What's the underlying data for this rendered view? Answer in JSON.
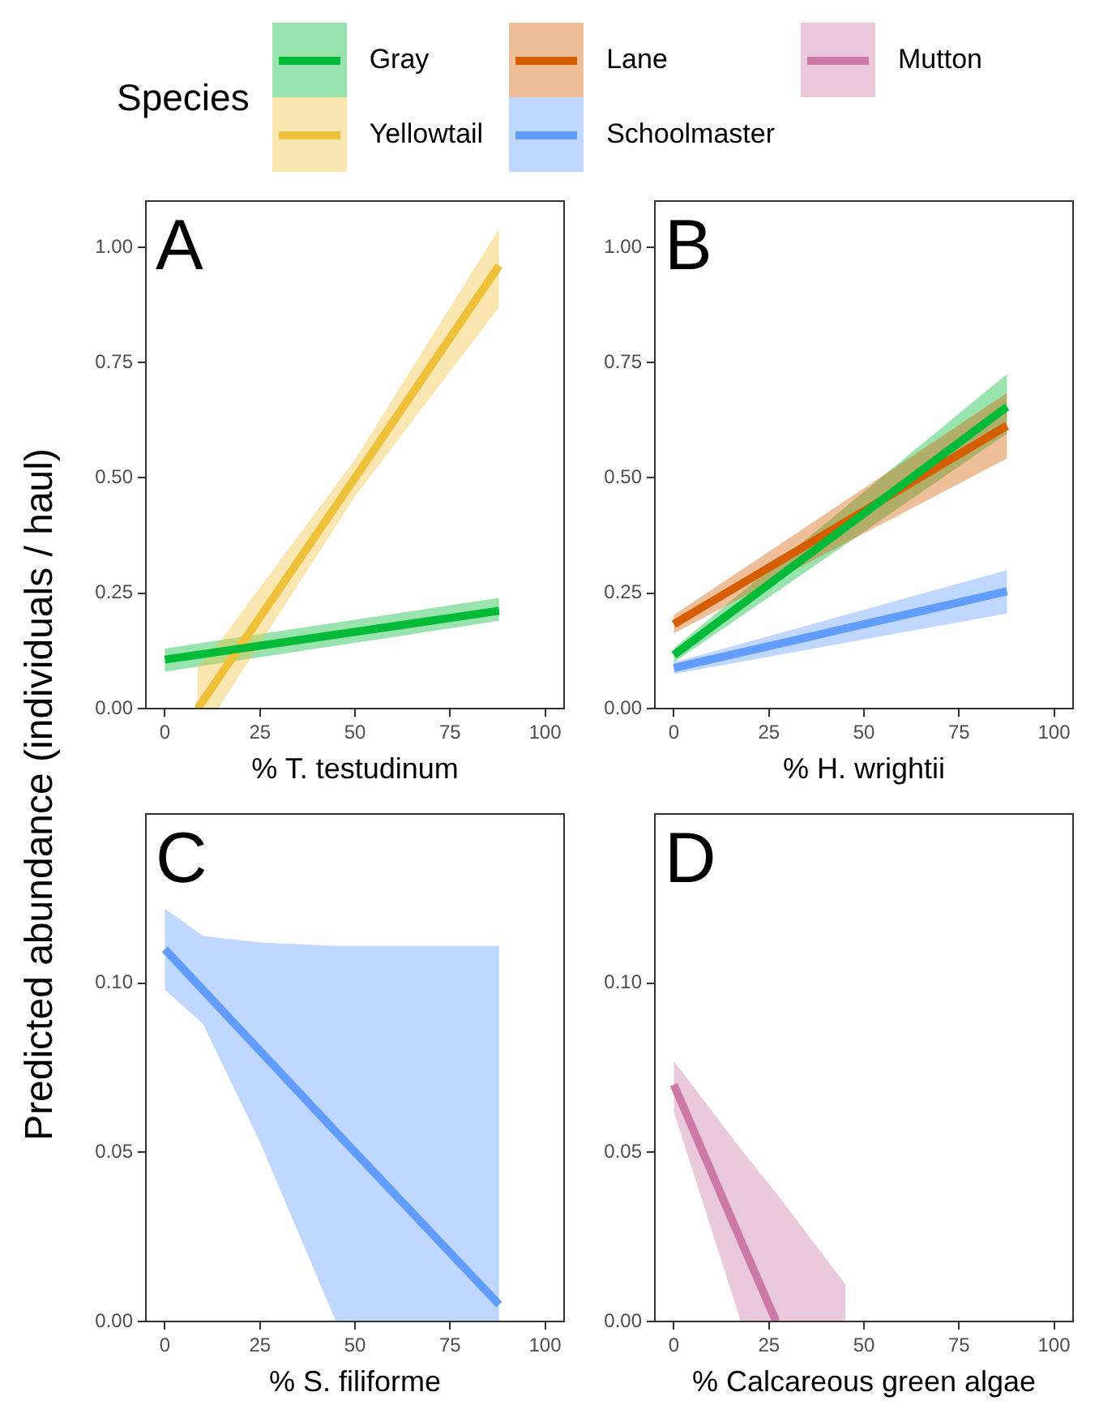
{
  "chart_data": [
    {
      "type": "line",
      "legend": "top",
      "legend_title": "Species",
      "ylabel": "Predicted abundance (individuals / haul)",
      "xlabel": "% T. testudinum",
      "annotations": [
        "A"
      ],
      "xlim": [
        -5,
        105
      ],
      "xticks": [
        0,
        25,
        50,
        75,
        100
      ],
      "ylim": [
        0,
        1.1
      ],
      "yticks": [
        {
          "value": 0,
          "label": "0.00"
        },
        {
          "value": 0.25,
          "label": "0.25"
        },
        {
          "value": 0.5,
          "label": "0.50"
        },
        {
          "value": 0.75,
          "label": "0.75"
        },
        {
          "value": 1,
          "label": "1.00"
        }
      ],
      "series": [
        {
          "name": "Gray",
          "color": "#00ba38",
          "x": [
            0,
            87.9
          ],
          "values": [
            0.106,
            0.212
          ],
          "lower": [
            0.08,
            0.19
          ],
          "upper": [
            0.13,
            0.24
          ]
        },
        {
          "name": "Yellowtail",
          "color": "#efc13a",
          "x": [
            8.6,
            14,
            50,
            87.9
          ],
          "values": [
            0,
            0.065,
            0.5,
            0.96
          ],
          "lower": [
            0,
            0,
            0.46,
            0.87
          ],
          "upper": [
            0.09,
            0.14,
            0.54,
            1.04
          ]
        }
      ]
    },
    {
      "type": "line",
      "legend": "top",
      "xlabel": "% H. wrightii",
      "annotations": [
        "B"
      ],
      "xlim": [
        -5,
        105
      ],
      "xticks": [
        0,
        25,
        50,
        75,
        100
      ],
      "ylim": [
        0,
        1.1
      ],
      "yticks": [
        {
          "value": 0,
          "label": "0.00"
        },
        {
          "value": 0.25,
          "label": "0.25"
        },
        {
          "value": 0.5,
          "label": "0.50"
        },
        {
          "value": 0.75,
          "label": "0.75"
        },
        {
          "value": 1,
          "label": "1.00"
        }
      ],
      "series": [
        {
          "name": "Gray",
          "color": "#00ba38",
          "x": [
            0,
            87.6
          ],
          "values": [
            0.116,
            0.654
          ],
          "lower": [
            0.1,
            0.596
          ],
          "upper": [
            0.131,
            0.725
          ]
        },
        {
          "name": "Lane",
          "color": "#d55e00",
          "x": [
            0,
            87.6
          ],
          "values": [
            0.183,
            0.613
          ],
          "lower": [
            0.163,
            0.542
          ],
          "upper": [
            0.203,
            0.684
          ]
        },
        {
          "name": "Schoolmaster",
          "color": "#619cff",
          "x": [
            0,
            87.6
          ],
          "values": [
            0.088,
            0.254
          ],
          "lower": [
            0.075,
            0.206
          ],
          "upper": [
            0.1,
            0.3
          ]
        }
      ]
    },
    {
      "type": "line",
      "legend": "top",
      "xlabel": "% S. filiforme",
      "annotations": [
        "C"
      ],
      "xlim": [
        -5,
        105
      ],
      "xticks": [
        0,
        25,
        50,
        75,
        100
      ],
      "ylim": [
        0,
        0.15
      ],
      "yticks": [
        {
          "value": 0,
          "label": "0.00"
        },
        {
          "value": 0.05,
          "label": "0.05"
        },
        {
          "value": 0.1,
          "label": "0.10"
        }
      ],
      "series": [
        {
          "name": "Schoolmaster",
          "color": "#619cff",
          "x": [
            0,
            10,
            25,
            45,
            87.9
          ],
          "values": [
            0.11,
            0.098,
            0.08,
            0.056,
            0.005
          ],
          "lower": [
            0.098,
            0.088,
            0.053,
            0,
            0
          ],
          "upper": [
            0.122,
            0.114,
            0.112,
            0.111,
            0.111
          ]
        }
      ]
    },
    {
      "type": "line",
      "legend": "top",
      "xlabel": "% Calcareous green algae",
      "annotations": [
        "D"
      ],
      "xlim": [
        -5,
        105
      ],
      "xticks": [
        0,
        25,
        50,
        75,
        100
      ],
      "ylim": [
        0,
        0.15
      ],
      "yticks": [
        {
          "value": 0,
          "label": "0.00"
        },
        {
          "value": 0.05,
          "label": "0.05"
        },
        {
          "value": 0.1,
          "label": "0.10"
        }
      ],
      "series": [
        {
          "name": "Mutton",
          "color": "#cc79a7",
          "x": [
            0,
            17.6,
            26.9,
            45.1
          ],
          "values": [
            0.07,
            0.024,
            0,
            null
          ],
          "lower": [
            0.062,
            0,
            0,
            0
          ],
          "upper": [
            0.077,
            0.051,
            0.038,
            0.011
          ]
        }
      ]
    }
  ]
}
